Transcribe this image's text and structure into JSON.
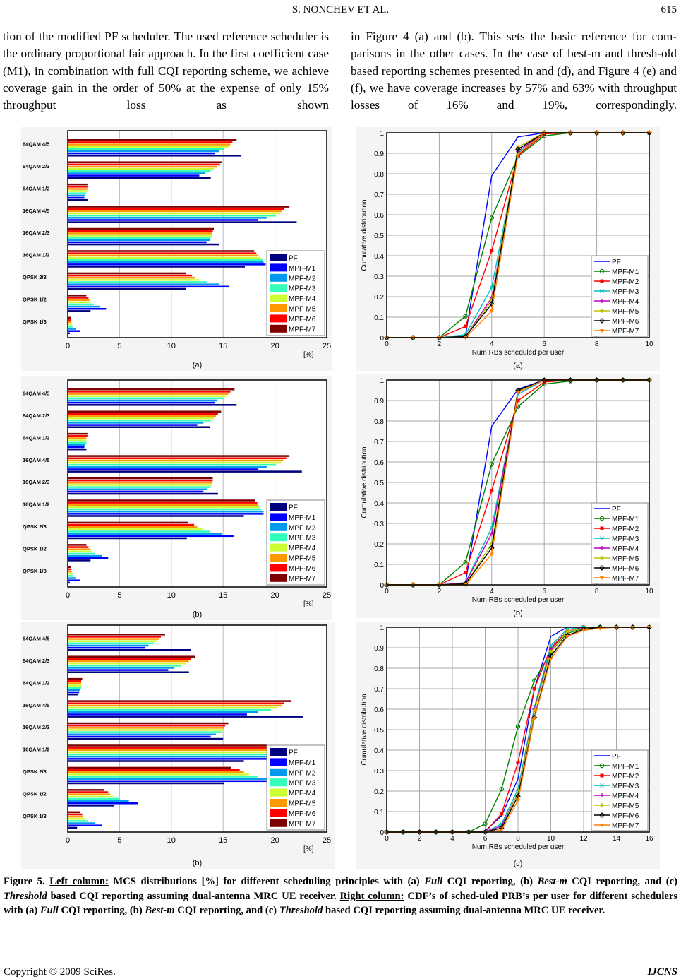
{
  "header": {
    "title": "S. NONCHEV    ET    AL.",
    "page": "615"
  },
  "body": {
    "left": "tion of the modified PF scheduler. The used reference scheduler is the ordinary proportional fair approach. In the first coefficient case (M1), in combination with full CQI reporting scheme, we achieve coverage gain in the order of 50% at the expense of only 15% throughput loss as shown",
    "right": "in Figure 4 (a) and (b). This sets the basic reference for com-parisons in the other cases. In the case of best-m and thresh-old based reporting schemes presented in and (d), and Figure 4 (e) and (f), we have coverage increases by 57% and 63% with throughput losses of 16% and 19%, correspondingly."
  },
  "caption": [
    {
      "text": "Figure 5. ",
      "style": ""
    },
    {
      "text": "Left column:",
      "style": "u"
    },
    {
      "text": " MCS distributions [%] for different scheduling principles with (a) ",
      "style": ""
    },
    {
      "text": "Full",
      "style": "i"
    },
    {
      "text": " CQI reporting, (b) ",
      "style": ""
    },
    {
      "text": "Best-m",
      "style": "i"
    },
    {
      "text": " CQI reporting, and (c) ",
      "style": ""
    },
    {
      "text": "Threshold",
      "style": "i"
    },
    {
      "text": " based CQI reporting assuming dual-antenna MRC UE receiver. ",
      "style": ""
    },
    {
      "text": "Right column:",
      "style": "u"
    },
    {
      "text": " CDF’s of sched-uled PRB’s per user for different schedulers with (a) ",
      "style": ""
    },
    {
      "text": "Full",
      "style": "i"
    },
    {
      "text": " CQI reporting, (b) ",
      "style": ""
    },
    {
      "text": "Best-m",
      "style": "i"
    },
    {
      "text": " CQI reporting, and (c) ",
      "style": ""
    },
    {
      "text": "Threshold",
      "style": "i"
    },
    {
      "text": " based CQI reporting assuming dual-antenna MRC UE receiver.",
      "style": ""
    }
  ],
  "footer": {
    "copyright": "Copyright © 2009 SciRes.",
    "journal": "IJCNS"
  },
  "bar_colors": [
    "#00007f",
    "#0000ff",
    "#0099ee",
    "#33ffbb",
    "#ccff33",
    "#ff9900",
    "#ff0000",
    "#7f0000"
  ],
  "line_styles": [
    {
      "color": "#0000ff",
      "marker": "none"
    },
    {
      "color": "#008000",
      "marker": "circle"
    },
    {
      "color": "#ff0000",
      "marker": "square"
    },
    {
      "color": "#00bfbf",
      "marker": "x"
    },
    {
      "color": "#bf00bf",
      "marker": "plus"
    },
    {
      "color": "#bfbf00",
      "marker": "star"
    },
    {
      "color": "#000000",
      "marker": "diamond"
    },
    {
      "color": "#ff7f00",
      "marker": "triangle-down"
    }
  ],
  "chart_data": [
    {
      "type": "bar",
      "orientation": "horizontal",
      "panel_label": "(a)",
      "xunit": "[%]",
      "xlim": [
        0,
        25
      ],
      "xticks": [
        0,
        5,
        10,
        15,
        20,
        25
      ],
      "grid": true,
      "legend": "bottom-right",
      "categories": [
        "64QAM 4/5",
        "64QAM 2/3",
        "64QAM 1/2",
        "16QAM 4/5",
        "16QAM 2/3",
        "16QAM 1/2",
        "QPSK 2/3",
        "QPSK 1/2",
        "QPSK 1/3"
      ],
      "series": [
        {
          "name": "PF",
          "values": [
            16.7,
            13.8,
            1.9,
            22.1,
            14.6,
            17.1,
            11.4,
            2.2,
            0.2
          ]
        },
        {
          "name": "MPF-M1",
          "values": [
            14.2,
            12.7,
            1.6,
            18.4,
            13.4,
            19.1,
            15.6,
            3.7,
            1.2
          ]
        },
        {
          "name": "MPF-M2",
          "values": [
            14.6,
            13.3,
            1.7,
            19.2,
            13.7,
            18.9,
            14.6,
            3.1,
            0.8
          ]
        },
        {
          "name": "MPF-M3",
          "values": [
            15.1,
            13.8,
            1.8,
            20.1,
            13.8,
            18.8,
            13.4,
            2.5,
            0.5
          ]
        },
        {
          "name": "MPF-M4",
          "values": [
            15.5,
            14.1,
            1.9,
            20.5,
            13.9,
            18.6,
            12.7,
            2.2,
            0.4
          ]
        },
        {
          "name": "MPF-M5",
          "values": [
            15.7,
            14.4,
            1.9,
            20.7,
            13.9,
            18.4,
            12.3,
            2.1,
            0.35
          ]
        },
        {
          "name": "MPF-M6",
          "values": [
            15.9,
            14.7,
            1.9,
            20.9,
            14.0,
            18.2,
            12.0,
            2.0,
            0.3
          ]
        },
        {
          "name": "MPF-M7",
          "values": [
            16.3,
            14.9,
            1.9,
            21.4,
            14.1,
            18.0,
            11.4,
            1.8,
            0.3
          ]
        }
      ]
    },
    {
      "type": "bar",
      "orientation": "horizontal",
      "panel_label": "(b)",
      "xunit": "[%]",
      "xlim": [
        0,
        25
      ],
      "xticks": [
        0,
        5,
        10,
        15,
        20,
        25
      ],
      "grid": true,
      "legend": "bottom-right",
      "categories": [
        "64QAM 4/5",
        "64QAM 2/3",
        "64QAM 1/2",
        "16QAM 4/5",
        "16QAM 2/3",
        "16QAM 1/2",
        "QPSK 2/3",
        "QPSK 1/2",
        "QPSK 1/3"
      ],
      "series": [
        {
          "name": "PF",
          "values": [
            16.3,
            13.7,
            1.8,
            22.6,
            14.5,
            17.0,
            11.5,
            2.2,
            0.2
          ]
        },
        {
          "name": "MPF-M1",
          "values": [
            14.2,
            12.5,
            1.6,
            18.4,
            13.1,
            18.9,
            16.0,
            3.9,
            1.2
          ]
        },
        {
          "name": "MPF-M2",
          "values": [
            14.4,
            13.1,
            1.7,
            19.2,
            13.5,
            18.9,
            14.9,
            3.3,
            0.8
          ]
        },
        {
          "name": "MPF-M3",
          "values": [
            15.0,
            13.8,
            1.8,
            20.1,
            13.8,
            18.7,
            13.7,
            2.6,
            0.5
          ]
        },
        {
          "name": "MPF-M4",
          "values": [
            15.3,
            14.1,
            1.8,
            20.6,
            13.9,
            18.6,
            13.0,
            2.3,
            0.45
          ]
        },
        {
          "name": "MPF-M5",
          "values": [
            15.5,
            14.3,
            1.8,
            20.8,
            13.9,
            18.4,
            12.5,
            2.2,
            0.4
          ]
        },
        {
          "name": "MPF-M6",
          "values": [
            15.7,
            14.5,
            1.9,
            21.1,
            14.0,
            18.3,
            12.2,
            2.0,
            0.35
          ]
        },
        {
          "name": "MPF-M7",
          "values": [
            16.1,
            14.8,
            1.9,
            21.4,
            14.0,
            18.1,
            11.6,
            1.8,
            0.3
          ]
        }
      ]
    },
    {
      "type": "bar",
      "orientation": "horizontal",
      "panel_label": "(b)",
      "xunit": "[%]",
      "xlim": [
        0,
        25
      ],
      "xticks": [
        0,
        5,
        10,
        15,
        20,
        25
      ],
      "grid": true,
      "legend": "bottom-right",
      "categories": [
        "64QAM 4/5",
        "64QAM 2/3",
        "64QAM 1/2",
        "16QAM 4/5",
        "16QAM 2/3",
        "16QAM 1/2",
        "QPSK 2/3",
        "QPSK 1/2",
        "QPSK 1/3"
      ],
      "series": [
        {
          "name": "PF",
          "values": [
            11.9,
            11.7,
            1.0,
            22.7,
            15.0,
            17.0,
            15.1,
            4.5,
            0.9
          ]
        },
        {
          "name": "MPF-M1",
          "values": [
            7.5,
            9.7,
            1.1,
            17.3,
            13.8,
            19.5,
            19.5,
            6.8,
            3.3
          ]
        },
        {
          "name": "MPF-M2",
          "values": [
            7.8,
            10.3,
            1.2,
            18.4,
            14.3,
            19.6,
            19.5,
            5.9,
            2.6
          ]
        },
        {
          "name": "MPF-M3",
          "values": [
            8.3,
            10.9,
            1.3,
            19.6,
            14.9,
            19.6,
            18.3,
            4.9,
            1.9
          ]
        },
        {
          "name": "MPF-M4",
          "values": [
            8.6,
            11.4,
            1.3,
            20.3,
            15.0,
            19.6,
            17.5,
            4.4,
            1.7
          ]
        },
        {
          "name": "MPF-M5",
          "values": [
            8.8,
            11.7,
            1.3,
            20.7,
            15.1,
            19.5,
            17.0,
            4.1,
            1.5
          ]
        },
        {
          "name": "MPF-M6",
          "values": [
            9.0,
            11.9,
            1.3,
            20.9,
            15.2,
            19.4,
            16.6,
            3.9,
            1.4
          ]
        },
        {
          "name": "MPF-M7",
          "values": [
            9.4,
            12.3,
            1.4,
            21.6,
            15.5,
            19.2,
            15.8,
            3.5,
            1.2
          ]
        }
      ]
    },
    {
      "type": "line",
      "panel_label": "(a)",
      "xlabel": "Num RBs scheduled per user",
      "ylabel": "Cumulative distribution",
      "xlim": [
        0,
        10
      ],
      "ylim": [
        0,
        1
      ],
      "xticks": [
        0,
        2,
        4,
        6,
        8,
        10
      ],
      "yticks": [
        0,
        0.1,
        0.2,
        0.3,
        0.4,
        0.5,
        0.6,
        0.7,
        0.8,
        0.9,
        1
      ],
      "grid": true,
      "legend": "bottom-right",
      "x": [
        0,
        1,
        2,
        3,
        4,
        5,
        6,
        7,
        8,
        9,
        10
      ],
      "series": [
        {
          "name": "PF",
          "values": [
            0,
            0,
            0,
            0.01,
            0.79,
            0.98,
            1,
            1,
            1,
            1,
            1
          ]
        },
        {
          "name": "MPF-M1",
          "values": [
            0,
            0,
            0,
            0.105,
            0.585,
            0.885,
            0.985,
            1,
            1,
            1,
            1
          ]
        },
        {
          "name": "MPF-M2",
          "values": [
            0,
            0,
            0,
            0.055,
            0.425,
            0.89,
            0.995,
            1,
            1,
            1,
            1
          ]
        },
        {
          "name": "MPF-M3",
          "values": [
            0,
            0,
            0,
            0.015,
            0.245,
            0.9,
            1,
            1,
            1,
            1,
            1
          ]
        },
        {
          "name": "MPF-M4",
          "values": [
            0,
            0,
            0,
            0.005,
            0.195,
            0.91,
            1,
            1,
            1,
            1,
            1
          ]
        },
        {
          "name": "MPF-M5",
          "values": [
            0,
            0,
            0,
            0.005,
            0.18,
            0.93,
            1,
            1,
            1,
            1,
            1
          ]
        },
        {
          "name": "MPF-M6",
          "values": [
            0,
            0,
            0,
            0.005,
            0.165,
            0.92,
            1,
            1,
            1,
            1,
            1
          ]
        },
        {
          "name": "MPF-M7",
          "values": [
            0,
            0,
            0,
            0,
            0.13,
            0.895,
            1,
            1,
            1,
            1,
            1
          ]
        }
      ]
    },
    {
      "type": "line",
      "panel_label": "(b)",
      "xlabel": "Num RBs scheduled per user",
      "ylabel": "Cumulative distribution",
      "xlim": [
        0,
        10
      ],
      "ylim": [
        0,
        1
      ],
      "xticks": [
        0,
        2,
        4,
        6,
        8,
        10
      ],
      "yticks": [
        0,
        0.1,
        0.2,
        0.3,
        0.4,
        0.5,
        0.6,
        0.7,
        0.8,
        0.9,
        1
      ],
      "grid": true,
      "legend": "bottom-right",
      "x": [
        0,
        1,
        2,
        3,
        4,
        5,
        6,
        7,
        8,
        9,
        10
      ],
      "series": [
        {
          "name": "PF",
          "values": [
            0,
            0,
            0,
            0.01,
            0.775,
            0.955,
            1,
            1,
            1,
            1,
            1
          ]
        },
        {
          "name": "MPF-M1",
          "values": [
            0,
            0,
            0,
            0.11,
            0.59,
            0.87,
            0.98,
            0.995,
            1,
            1,
            1
          ]
        },
        {
          "name": "MPF-M2",
          "values": [
            0,
            0,
            0,
            0.06,
            0.46,
            0.9,
            0.99,
            1,
            1,
            1,
            1
          ]
        },
        {
          "name": "MPF-M3",
          "values": [
            0,
            0,
            0,
            0.01,
            0.28,
            0.93,
            1,
            1,
            1,
            1,
            1
          ]
        },
        {
          "name": "MPF-M4",
          "values": [
            0,
            0,
            0,
            0.01,
            0.25,
            0.94,
            1,
            1,
            1,
            1,
            1
          ]
        },
        {
          "name": "MPF-M5",
          "values": [
            0,
            0,
            0,
            0.005,
            0.2,
            0.945,
            1,
            1,
            1,
            1,
            1
          ]
        },
        {
          "name": "MPF-M6",
          "values": [
            0,
            0,
            0,
            0.005,
            0.18,
            0.95,
            1,
            1,
            1,
            1,
            1
          ]
        },
        {
          "name": "MPF-M7",
          "values": [
            0,
            0,
            0,
            0,
            0.15,
            0.94,
            1,
            1,
            1,
            1,
            1
          ]
        }
      ]
    },
    {
      "type": "line",
      "panel_label": "(c)",
      "xlabel": "Num RBs scheduled per user",
      "ylabel": "Cumulative distribution",
      "xlim": [
        0,
        16
      ],
      "ylim": [
        0,
        1
      ],
      "xticks": [
        0,
        2,
        4,
        6,
        8,
        10,
        12,
        14,
        16
      ],
      "yticks": [
        0,
        0.1,
        0.2,
        0.3,
        0.4,
        0.5,
        0.6,
        0.7,
        0.8,
        0.9,
        1
      ],
      "grid": true,
      "legend": "bottom-right",
      "x": [
        0,
        1,
        2,
        3,
        4,
        5,
        6,
        7,
        8,
        9,
        10,
        11,
        12,
        13,
        14,
        15,
        16
      ],
      "series": [
        {
          "name": "PF",
          "values": [
            0,
            0,
            0,
            0,
            0,
            0,
            0.005,
            0.08,
            0.26,
            0.7,
            0.955,
            1,
            1,
            1,
            1,
            1,
            1
          ]
        },
        {
          "name": "MPF-M1",
          "values": [
            0,
            0,
            0,
            0,
            0,
            0,
            0.04,
            0.21,
            0.515,
            0.74,
            0.88,
            0.97,
            0.995,
            1,
            1,
            1,
            1
          ]
        },
        {
          "name": "MPF-M2",
          "values": [
            0,
            0,
            0,
            0,
            0,
            0,
            0,
            0.09,
            0.34,
            0.7,
            0.9,
            0.98,
            1,
            1,
            1,
            1,
            1
          ]
        },
        {
          "name": "MPF-M3",
          "values": [
            0,
            0,
            0,
            0,
            0,
            0,
            0,
            0.04,
            0.21,
            0.61,
            0.91,
            0.99,
            1,
            1,
            1,
            1,
            1
          ]
        },
        {
          "name": "MPF-M4",
          "values": [
            0,
            0,
            0,
            0,
            0,
            0,
            0,
            0.03,
            0.19,
            0.6,
            0.89,
            0.98,
            1,
            1,
            1,
            1,
            1
          ]
        },
        {
          "name": "MPF-M5",
          "values": [
            0,
            0,
            0,
            0,
            0,
            0,
            0,
            0.02,
            0.19,
            0.59,
            0.88,
            0.98,
            0.995,
            1,
            1,
            1,
            1
          ]
        },
        {
          "name": "MPF-M6",
          "values": [
            0,
            0,
            0,
            0,
            0,
            0,
            0,
            0.02,
            0.175,
            0.56,
            0.86,
            0.96,
            0.99,
            1,
            1,
            1,
            1
          ]
        },
        {
          "name": "MPF-M7",
          "values": [
            0,
            0,
            0,
            0,
            0,
            0,
            0,
            0.01,
            0.155,
            0.555,
            0.845,
            0.955,
            0.985,
            0.995,
            1,
            1,
            1
          ]
        }
      ]
    }
  ]
}
